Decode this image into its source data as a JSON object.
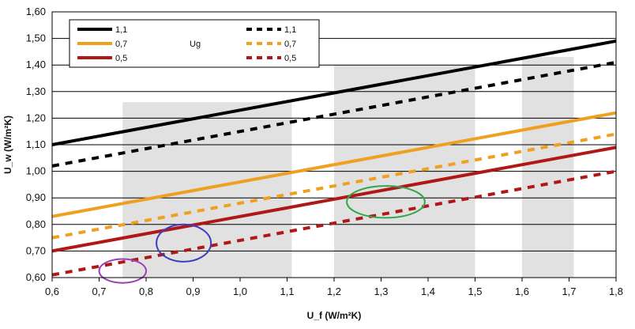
{
  "chart_data": {
    "type": "line",
    "title": "",
    "xlabel": "U_f (W/m²K)",
    "ylabel": "U_w (W/m²K)",
    "xlim": [
      0.6,
      1.8
    ],
    "ylim": [
      0.6,
      1.6
    ],
    "grid": true,
    "x_ticks": [
      "0,6",
      "0,7",
      "0,8",
      "0,9",
      "1,0",
      "1,1",
      "1,2",
      "1,3",
      "1,4",
      "1,5",
      "1,6",
      "1,7",
      "1,8"
    ],
    "y_ticks": [
      "0,60",
      "0,70",
      "0,80",
      "0,90",
      "1,00",
      "1,10",
      "1,20",
      "1,30",
      "1,40",
      "1,50",
      "1,60"
    ],
    "legend_title": "Ug",
    "legend_position": "top-left",
    "series": [
      {
        "name": "1,1",
        "style": "solid",
        "color": "#000000",
        "x": [
          0.6,
          1.8
        ],
        "y": [
          1.1,
          1.49
        ]
      },
      {
        "name": "0,7",
        "style": "solid",
        "color": "#f0a020",
        "x": [
          0.6,
          1.8
        ],
        "y": [
          0.83,
          1.22
        ]
      },
      {
        "name": "0,5",
        "style": "solid",
        "color": "#b01818",
        "x": [
          0.6,
          1.8
        ],
        "y": [
          0.7,
          1.09
        ]
      },
      {
        "name": "1,1",
        "style": "dashed",
        "color": "#000000",
        "x": [
          0.6,
          1.8
        ],
        "y": [
          1.02,
          1.41
        ]
      },
      {
        "name": "0,7",
        "style": "dashed",
        "color": "#f0a020",
        "x": [
          0.6,
          1.8
        ],
        "y": [
          0.75,
          1.14
        ]
      },
      {
        "name": "0,5",
        "style": "dashed",
        "color": "#b01818",
        "x": [
          0.6,
          1.8
        ],
        "y": [
          0.61,
          1.0
        ]
      }
    ],
    "shaded_bands": [
      {
        "x": [
          0.75,
          1.11
        ],
        "y_top": 1.26
      },
      {
        "x": [
          1.2,
          1.5
        ],
        "y_top": 1.4
      },
      {
        "x": [
          1.6,
          1.71
        ],
        "y_top": 1.43
      }
    ],
    "annotations": [
      {
        "shape": "ellipse",
        "color": "#9c3fb5",
        "cx": 0.75,
        "cy": 0.625,
        "rx": 0.05,
        "ry": 0.045
      },
      {
        "shape": "ellipse",
        "color": "#3a3fc0",
        "cx": 0.88,
        "cy": 0.73,
        "rx": 0.058,
        "ry": 0.07
      },
      {
        "shape": "ellipse",
        "color": "#2fa84a",
        "cx": 1.31,
        "cy": 0.885,
        "rx": 0.083,
        "ry": 0.06
      }
    ]
  }
}
